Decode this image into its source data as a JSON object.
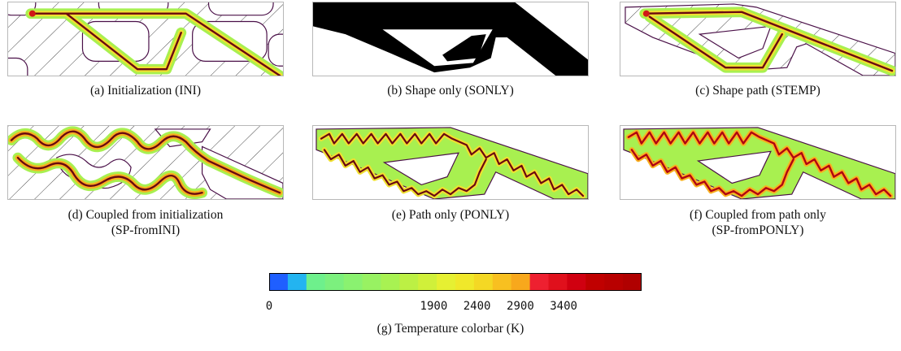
{
  "figure": {
    "panels": [
      {
        "id": "a",
        "caption_lines": [
          "(a) Initialization (INI)"
        ]
      },
      {
        "id": "b",
        "caption_lines": [
          "(b) Shape only (SONLY)"
        ]
      },
      {
        "id": "c",
        "caption_lines": [
          "(c) Shape path (STEMP)"
        ]
      },
      {
        "id": "d",
        "caption_lines": [
          "(d) Coupled from initialization",
          "(SP-fromINI)"
        ]
      },
      {
        "id": "e",
        "caption_lines": [
          "(e) Path only (PONLY)"
        ]
      },
      {
        "id": "f",
        "caption_lines": [
          "(f) Coupled from path only",
          "(SP-fromPONLY)"
        ]
      }
    ],
    "colorbar": {
      "caption": "(g) Temperature colorbar (K)",
      "tick_labels": [
        "0",
        "1900",
        "2400",
        "2900",
        "3400"
      ],
      "tick_values": [
        0,
        1900,
        2400,
        2900,
        3400
      ],
      "range": [
        0,
        4300
      ],
      "colors": [
        "#1f5fff",
        "#23b4f0",
        "#6ef08c",
        "#7cf07e",
        "#8af270",
        "#98f262",
        "#a8f252",
        "#bcf044",
        "#d0f03a",
        "#e6f032",
        "#f0e82a",
        "#f4d824",
        "#f8c020",
        "#f8a81c",
        "#ee2030",
        "#e0101c",
        "#d00010",
        "#c00000",
        "#b80000",
        "#b00000"
      ],
      "outline_colors": {
        "wall": "#4a1048",
        "path": "#6a0810",
        "heat_core": "#d01818",
        "heat_mid": "#f8b020",
        "heat_outer": "#a8f050",
        "solid": "#000000"
      }
    }
  }
}
